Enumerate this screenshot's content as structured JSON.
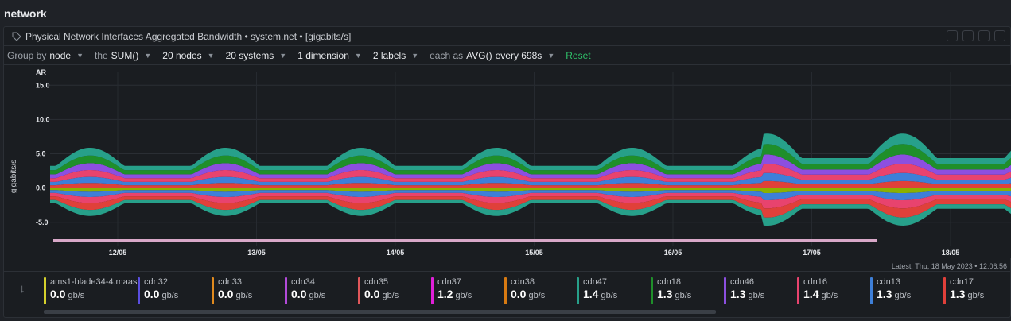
{
  "section": {
    "title": "network"
  },
  "card": {
    "title": "Physical Network Interfaces Aggregated Bandwidth • system.net • [gigabits/s]"
  },
  "toolbar": {
    "group_by_label": "Group by",
    "group_by_value": "node",
    "the_label": "the",
    "agg_value": "SUM()",
    "nodes": "20 nodes",
    "systems": "20 systems",
    "dimension": "1 dimension",
    "labels": "2 labels",
    "each_as_label": "each as",
    "each_as_value": "AVG()",
    "every": "every 698s",
    "reset": "Reset"
  },
  "chart_data": {
    "type": "area",
    "stacked": true,
    "ylabel": "gigabits/s",
    "y_corner_label": "AR",
    "ylim": [
      -7,
      17
    ],
    "yticks": [
      "15.0",
      "10.0",
      "5.0",
      "0.0",
      "-5.0"
    ],
    "ytick_values": [
      15,
      10,
      5,
      0,
      -5
    ],
    "x_tick_labels": [
      "12/05",
      "13/05",
      "14/05",
      "15/05",
      "16/05",
      "17/05",
      "18/05"
    ],
    "series": [
      {
        "name": "cdn47",
        "color": "#27a08a"
      },
      {
        "name": "cdn18",
        "color": "#1f8f2a"
      },
      {
        "name": "cdn46",
        "color": "#8c4fe0"
      },
      {
        "name": "cdn16",
        "color": "#e8436e"
      },
      {
        "name": "cdn13",
        "color": "#3e7fd8"
      },
      {
        "name": "cdn17",
        "color": "#e0403a"
      }
    ]
  },
  "latest": "Latest: Thu, 18 May 2023 • 12:06:56",
  "legend": [
    {
      "name": "ams1-blade34-4.maas",
      "value": "0.0",
      "unit": "gb/s",
      "color": "#d4d02c"
    },
    {
      "name": "cdn32",
      "value": "0.0",
      "unit": "gb/s",
      "color": "#5a4ee0"
    },
    {
      "name": "cdn33",
      "value": "0.0",
      "unit": "gb/s",
      "color": "#e08a1e"
    },
    {
      "name": "cdn34",
      "value": "0.0",
      "unit": "gb/s",
      "color": "#b24ad8"
    },
    {
      "name": "cdn35",
      "value": "0.0",
      "unit": "gb/s",
      "color": "#e0575a"
    },
    {
      "name": "cdn37",
      "value": "1.2",
      "unit": "gb/s",
      "color": "#e020d8"
    },
    {
      "name": "cdn38",
      "value": "0.0",
      "unit": "gb/s",
      "color": "#d77a12"
    },
    {
      "name": "cdn47",
      "value": "1.4",
      "unit": "gb/s",
      "color": "#27a08a"
    },
    {
      "name": "cdn18",
      "value": "1.3",
      "unit": "gb/s",
      "color": "#1f8f2a"
    },
    {
      "name": "cdn46",
      "value": "1.3",
      "unit": "gb/s",
      "color": "#8c4fe0"
    },
    {
      "name": "cdn16",
      "value": "1.4",
      "unit": "gb/s",
      "color": "#e8436e"
    },
    {
      "name": "cdn13",
      "value": "1.3",
      "unit": "gb/s",
      "color": "#3e7fd8"
    },
    {
      "name": "cdn17",
      "value": "1.3",
      "unit": "gb/s",
      "color": "#e0403a"
    }
  ]
}
